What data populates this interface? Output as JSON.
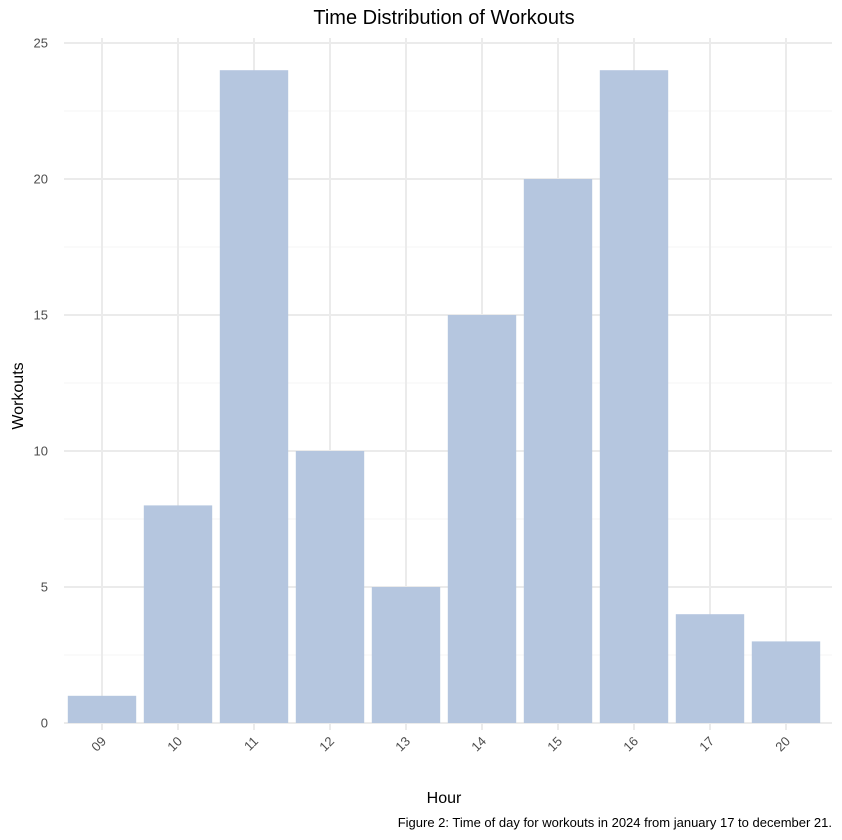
{
  "chart_data": {
    "type": "bar",
    "title": "Time Distribution of Workouts",
    "xlabel": "Hour",
    "ylabel": "Workouts",
    "caption": "Figure 2: Time of day for workouts in 2024 from january 17 to december 21.",
    "categories": [
      "09",
      "10",
      "11",
      "12",
      "13",
      "14",
      "15",
      "16",
      "17",
      "20"
    ],
    "values": [
      1,
      8,
      24,
      10,
      5,
      15,
      20,
      24,
      4,
      3
    ],
    "ylim": [
      0,
      25
    ],
    "yticks": [
      0,
      5,
      10,
      15,
      20,
      25
    ],
    "ytick_labels": [
      "0",
      "5",
      "10",
      "15",
      "20",
      "25"
    ],
    "grid": true,
    "legend": "none",
    "colors": {
      "bar": "#b5c6df",
      "grid_major": "#ebebeb",
      "grid_minor": "#f4f4f4",
      "text": "#000000",
      "tick_text": "#4d4d4d"
    }
  }
}
